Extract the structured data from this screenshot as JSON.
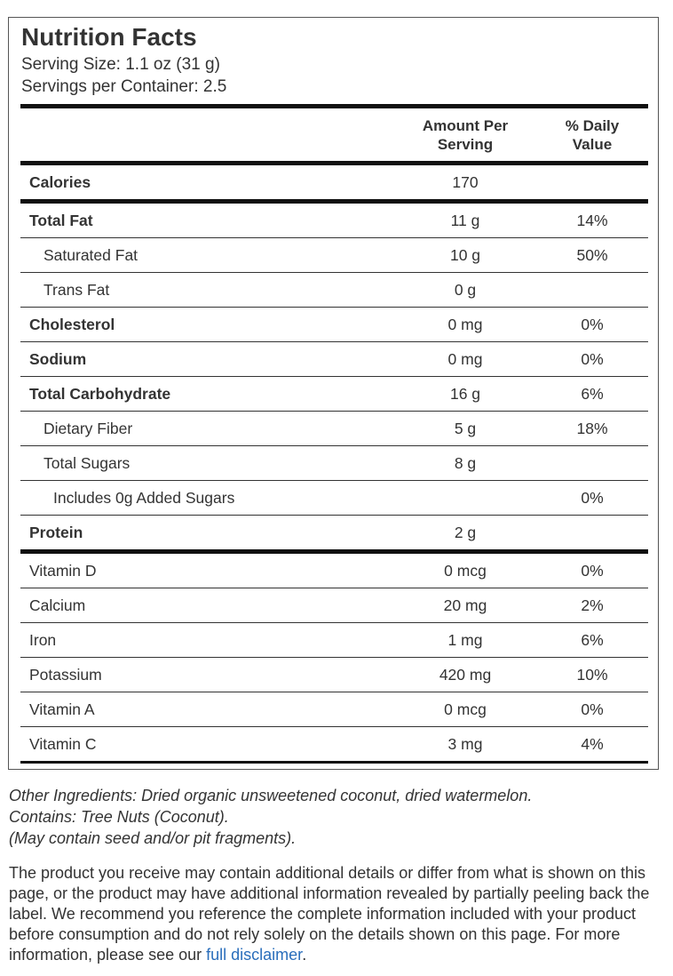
{
  "header": {
    "title": "Nutrition Facts",
    "serving_size": "Serving Size: 1.1 oz (31 g)",
    "servings_per_container": "Servings per Container: 2.5"
  },
  "table": {
    "columns": [
      "Amount Per Serving",
      "% Daily Value"
    ],
    "rows": [
      {
        "name": "Calories",
        "amount": "170"
      },
      {
        "name": "Total Fat",
        "amount": "11 g",
        "daily_value": "14%"
      },
      {
        "name": "Saturated Fat",
        "amount": "10 g",
        "daily_value": "50%"
      },
      {
        "name": "Trans Fat",
        "amount": "0 g"
      },
      {
        "name": "Cholesterol",
        "amount": "0 mg",
        "daily_value": "0%"
      },
      {
        "name": "Sodium",
        "amount": "0 mg",
        "daily_value": "0%"
      },
      {
        "name": "Total Carbohydrate",
        "amount": "16 g",
        "daily_value": "6%"
      },
      {
        "name": "Dietary Fiber",
        "amount": "5 g",
        "daily_value": "18%"
      },
      {
        "name": "Total Sugars",
        "amount": "8 g"
      },
      {
        "name": "Includes 0g Added Sugars",
        "daily_value": "0%"
      },
      {
        "name": "Protein",
        "amount": "2 g"
      },
      {
        "name": "Vitamin D",
        "amount": "0 mcg",
        "daily_value": "0%"
      },
      {
        "name": "Calcium",
        "amount": "20 mg",
        "daily_value": "2%"
      },
      {
        "name": "Iron",
        "amount": "1 mg",
        "daily_value": "6%"
      },
      {
        "name": "Potassium",
        "amount": "420 mg",
        "daily_value": "10%"
      },
      {
        "name": "Vitamin A",
        "amount": "0 mcg",
        "daily_value": "0%"
      },
      {
        "name": "Vitamin C",
        "amount": "3 mg",
        "daily_value": "4%"
      }
    ]
  },
  "notes": [
    "Other Ingredients: Dried organic unsweetened coconut, dried watermelon.",
    "Contains: Tree Nuts (Coconut).",
    "(May contain seed and/or pit fragments)."
  ],
  "disclaimer": {
    "text": "The product you receive may contain additional details or differ from what is shown on this page, or the product may have additional information revealed by partially peeling back the label. We recommend you reference the complete information included with your product before consumption and do not rely solely on the details shown on this page. For more information, please see our ",
    "link": "full disclaimer",
    "end": "."
  }
}
